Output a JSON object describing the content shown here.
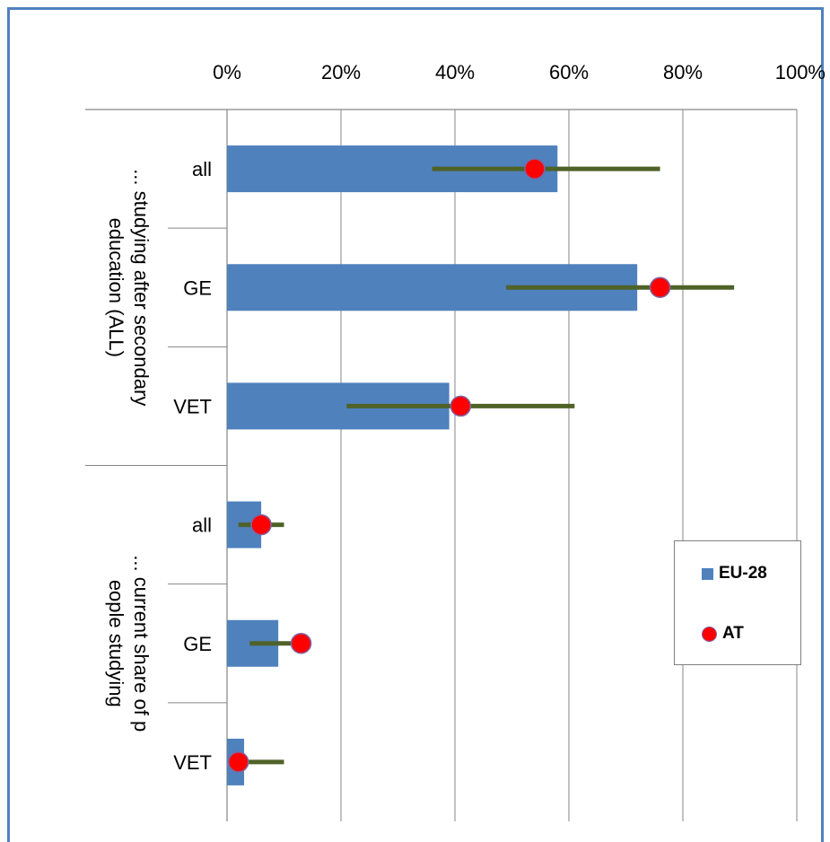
{
  "chart_data": {
    "type": "bar",
    "orientation": "horizontal",
    "x_axis": {
      "position": "top",
      "ticks": [
        "0%",
        "20%",
        "40%",
        "60%",
        "80%",
        "100%"
      ],
      "xlim": [
        0,
        1
      ],
      "grid": true
    },
    "groups": [
      {
        "label": "... studying after secondary education (ALL)",
        "categories": [
          "all",
          "GE",
          "VET"
        ]
      },
      {
        "label": "... current share of people studying",
        "categories": [
          "all",
          "GE",
          "VET"
        ]
      }
    ],
    "series": [
      {
        "name": "EU-28",
        "type": "bar",
        "color": "#4f81bd",
        "values": [
          0.58,
          0.72,
          0.39,
          0.06,
          0.09,
          0.03
        ]
      },
      {
        "name": "AT",
        "type": "marker",
        "color": "#ff0000",
        "values": [
          0.54,
          0.76,
          0.41,
          0.06,
          0.13,
          0.02
        ],
        "range_color": "#4f6228",
        "range_low": [
          0.36,
          0.49,
          0.21,
          0.02,
          0.04,
          0.02
        ],
        "range_high": [
          0.76,
          0.89,
          0.61,
          0.1,
          0.13,
          0.1
        ]
      }
    ],
    "legend": {
      "position": "right",
      "items": [
        "EU-28",
        "AT"
      ]
    }
  }
}
